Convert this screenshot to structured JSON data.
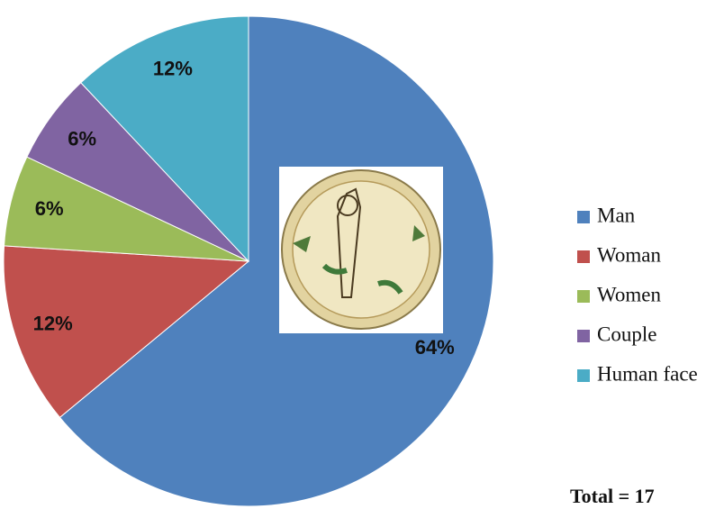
{
  "chart_data": {
    "type": "pie",
    "categories": [
      "Man",
      "Woman",
      "Women",
      "Couple",
      "Human face"
    ],
    "values": [
      64,
      12,
      6,
      6,
      12
    ],
    "value_labels": [
      "64%",
      "12%",
      "6%",
      "6%",
      "12%"
    ],
    "colors": [
      "#4f81bd",
      "#c0504d",
      "#9bbb59",
      "#8064a2",
      "#4bacc6"
    ],
    "legend": "right",
    "annotation": "Total = 17"
  }
}
